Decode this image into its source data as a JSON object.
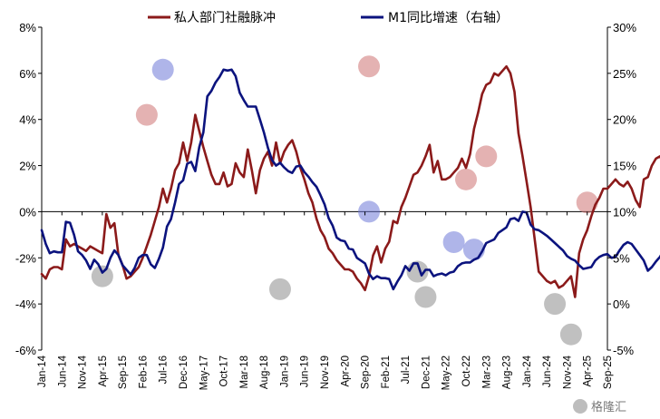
{
  "chart_data": {
    "type": "line",
    "title": "",
    "watermark": "格隆汇",
    "legend": {
      "placement": "top-center"
    },
    "x_ticks": [
      "Jan-14",
      "Jun-14",
      "Nov-14",
      "Apr-15",
      "Sep-15",
      "Feb-16",
      "Jul-16",
      "Dec-16",
      "May-17",
      "Oct-17",
      "Mar-18",
      "Aug-18",
      "Jan-19",
      "Jun-19",
      "Nov-19",
      "Apr-20",
      "Sep-20",
      "Feb-21",
      "Jul-21",
      "Dec-21",
      "May-22",
      "Oct-22",
      "Mar-23",
      "Aug-23",
      "Jan-24",
      "Jun-24",
      "Nov-24",
      "Apr-25",
      "Sep-25"
    ],
    "x_range": [
      "2014-01",
      "2025-09"
    ],
    "y_left": {
      "ticks": [
        "8%",
        "6%",
        "4%",
        "2%",
        "0%",
        "-2%",
        "-4%",
        "-6%"
      ],
      "range": [
        -6,
        8
      ]
    },
    "y_right": {
      "ticks": [
        "30%",
        "25%",
        "20%",
        "15%",
        "10%",
        "5%",
        "0%",
        "-5%"
      ],
      "range": [
        -5,
        30
      ]
    },
    "series": [
      {
        "name": "私人部门社融脉冲",
        "axis": "left",
        "color": "#8B1A1A",
        "values": [
          -2.7,
          -2.9,
          -2.5,
          -2.4,
          -2.4,
          -2.5,
          -1.2,
          -1.5,
          -1.4,
          -1.5,
          -1.6,
          -1.7,
          -1.5,
          -1.6,
          -1.7,
          -1.8,
          -0.1,
          -0.7,
          -0.5,
          -1.9,
          -2.3,
          -2.9,
          -2.8,
          -2.6,
          -2.4,
          -2.0,
          -1.5,
          -1.0,
          -0.4,
          0.2,
          1.0,
          0.4,
          1.0,
          1.8,
          2.1,
          3.0,
          2.2,
          3.0,
          4.2,
          3.5,
          2.8,
          2.2,
          1.6,
          1.2,
          1.2,
          1.7,
          1.1,
          1.2,
          2.1,
          1.7,
          1.5,
          2.7,
          1.8,
          0.8,
          1.8,
          2.3,
          2.6,
          2.0,
          3.0,
          2.1,
          2.6,
          2.9,
          3.1,
          2.6,
          1.9,
          1.4,
          0.8,
          0.4,
          -0.3,
          -0.8,
          -1.1,
          -1.6,
          -1.8,
          -2.1,
          -2.3,
          -2.5,
          -2.5,
          -2.6,
          -2.9,
          -3.1,
          -3.4,
          -2.8,
          -1.9,
          -1.5,
          -2.2,
          -1.6,
          -1.3,
          -0.4,
          -0.5,
          0.2,
          0.6,
          1.1,
          1.6,
          1.7,
          2.0,
          2.4,
          2.9,
          1.7,
          2.2,
          1.4,
          1.4,
          1.5,
          1.7,
          1.9,
          2.3,
          1.9,
          2.5,
          3.6,
          4.3,
          5.1,
          5.5,
          5.6,
          6.0,
          5.9,
          6.1,
          6.3,
          6.0,
          5.2,
          3.4,
          2.4,
          1.3,
          0.2,
          -1.2,
          -2.6,
          -2.8,
          -3.0,
          -3.1,
          -3.0,
          -3.3,
          -3.2,
          -3.0,
          -2.8,
          -3.7,
          -1.8,
          -1.2,
          -0.8,
          -0.2,
          0.3,
          0.6,
          1.0,
          1.0,
          1.2,
          1.4,
          1.2,
          1.1,
          1.3,
          1.0,
          0.5,
          0.2,
          1.4,
          1.5,
          2.0,
          2.3,
          2.4,
          2.1,
          1.6,
          1.2,
          1.0,
          1.0,
          1.1,
          0.8,
          0.4,
          -0.3,
          -1.0,
          -1.5,
          -1.8,
          -2.2,
          -2.5,
          -2.8,
          -3.0,
          -3.3,
          -3.6,
          -3.5,
          -3.9,
          -4.0,
          -3.6,
          -2.9,
          -2.4,
          -1.9,
          -1.5,
          -1.2,
          -0.9,
          -0.7,
          -0.3,
          0.4,
          0.3,
          0.3,
          0.2,
          0.2,
          0.2
        ],
        "highlights": [
          {
            "x": "2016-03",
            "y": 4.2
          },
          {
            "x": "2020-10",
            "y": 6.3
          },
          {
            "x": "2022-10",
            "y": 1.4
          },
          {
            "x": "2023-03",
            "y": 2.4
          },
          {
            "x": "2025-04",
            "y": 0.4
          }
        ]
      },
      {
        "name": "M1同比增速（右轴）",
        "axis": "right",
        "color": "#0B137E",
        "values": [
          8.0,
          6.5,
          5.5,
          5.7,
          5.6,
          5.6,
          8.9,
          8.8,
          7.5,
          5.7,
          5.3,
          4.7,
          3.8,
          4.8,
          4.3,
          3.4,
          3.8,
          5.0,
          5.8,
          5.3,
          4.2,
          3.7,
          3.2,
          3.9,
          5.0,
          5.3,
          5.3,
          4.3,
          3.9,
          4.9,
          6.1,
          8.4,
          9.2,
          11.0,
          13.0,
          13.4,
          15.2,
          15.4,
          14.4,
          17.0,
          18.6,
          22.5,
          23.1,
          24.0,
          24.6,
          25.4,
          25.3,
          25.4,
          24.7,
          22.9,
          22.1,
          21.4,
          21.4,
          21.4,
          20.0,
          18.6,
          16.9,
          15.6,
          15.0,
          15.3,
          14.8,
          14.4,
          14.2,
          14.9,
          15.0,
          14.3,
          13.8,
          13.2,
          12.7,
          11.8,
          10.8,
          9.3,
          8.5,
          7.2,
          6.9,
          6.8,
          6.0,
          5.9,
          5.0,
          4.7,
          4.4,
          3.3,
          2.7,
          3.0,
          2.8,
          2.8,
          2.7,
          1.6,
          2.4,
          3.1,
          4.1,
          3.6,
          4.4,
          4.4,
          3.1,
          3.7,
          3.7,
          3.0,
          3.2,
          3.3,
          3.1,
          3.4,
          3.5,
          4.1,
          4.4,
          4.5,
          4.5,
          4.8,
          5.0,
          5.7,
          6.6,
          6.8,
          7.0,
          7.7,
          8.0,
          8.3,
          9.2,
          9.3,
          9.0,
          10.0,
          9.9,
          8.6,
          8.1,
          8.0,
          7.7,
          7.4,
          7.0,
          6.6,
          6.2,
          5.8,
          5.2,
          4.9,
          4.7,
          4.2,
          3.8,
          3.9,
          4.0,
          4.7,
          5.1,
          5.3,
          5.4,
          5.0,
          5.1,
          5.8,
          6.4,
          6.7,
          6.5,
          5.9,
          5.3,
          4.7,
          3.6,
          4.0,
          4.6,
          5.1,
          5.8,
          5.9,
          5.6,
          5.5,
          5.1,
          4.5,
          3.5,
          2.2,
          2.0,
          2.1,
          1.8,
          1.4,
          1.2,
          1.4,
          1.3,
          1.2,
          1.1,
          0.8,
          1.3,
          0.9,
          -0.4,
          -1.1,
          -1.4,
          -2.0,
          -2.3,
          -3.0,
          -3.3,
          -3.1,
          -3.2,
          -2.1,
          -1.6,
          -0.2,
          -0.1,
          0.1,
          0.3,
          1.0,
          1.2,
          1.5,
          2.3,
          4.6,
          5.0,
          5.6,
          6.4,
          7.2,
          8.1,
          8.7
        ],
        "highlights": [
          {
            "x": "2015-04",
            "y": 3.0
          },
          {
            "x": "2016-07",
            "y": 25.4
          },
          {
            "x": "2018-12",
            "y": 1.6
          },
          {
            "x": "2020-10",
            "y": 10.0
          },
          {
            "x": "2021-10",
            "y": 3.5
          },
          {
            "x": "2022-07",
            "y": 6.7
          },
          {
            "x": "2022-12",
            "y": 5.9
          },
          {
            "x": "2024-12",
            "y": -3.3
          }
        ]
      }
    ],
    "extra_highlights": [
      {
        "x": "2021-12",
        "axis": "left",
        "y": -3.7
      },
      {
        "x": "2024-08",
        "axis": "left",
        "y": -4.0
      }
    ]
  }
}
